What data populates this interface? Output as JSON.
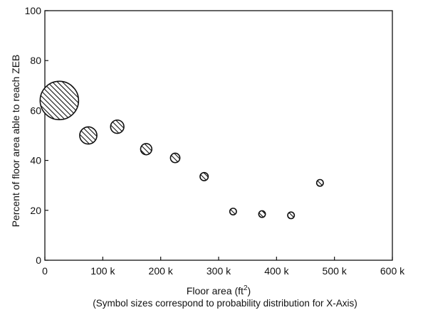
{
  "chart_data": {
    "type": "scatter",
    "xlabel": "Floor area (ft",
    "xlabel_superscript": "2",
    "xlabel_suffix": ")",
    "caption": "(Symbol sizes correspond to probability distribution for X-Axis)",
    "ylabel": "Percent of floor area able to reach ZEB",
    "xlim": [
      0,
      600000
    ],
    "ylim": [
      0,
      100
    ],
    "grid": false,
    "marker_fill": "hatched",
    "x_ticks": [
      {
        "value": 0,
        "label": "0"
      },
      {
        "value": 100000,
        "label": "100 k"
      },
      {
        "value": 200000,
        "label": "200 k"
      },
      {
        "value": 300000,
        "label": "300 k"
      },
      {
        "value": 400000,
        "label": "400 k"
      },
      {
        "value": 500000,
        "label": "500 k"
      },
      {
        "value": 600000,
        "label": "600 k"
      }
    ],
    "y_ticks": [
      {
        "value": 0,
        "label": "0"
      },
      {
        "value": 20,
        "label": "20"
      },
      {
        "value": 40,
        "label": "40"
      },
      {
        "value": 60,
        "label": "60"
      },
      {
        "value": 80,
        "label": "80"
      },
      {
        "value": 100,
        "label": "100"
      }
    ],
    "points": [
      {
        "x": 25000,
        "y": 64,
        "size": 1.0
      },
      {
        "x": 75000,
        "y": 50,
        "size": 0.2
      },
      {
        "x": 125000,
        "y": 53.5,
        "size": 0.12
      },
      {
        "x": 175000,
        "y": 44.5,
        "size": 0.085
      },
      {
        "x": 225000,
        "y": 41,
        "size": 0.06
      },
      {
        "x": 275000,
        "y": 33.5,
        "size": 0.045
      },
      {
        "x": 325000,
        "y": 19.5,
        "size": 0.03
      },
      {
        "x": 375000,
        "y": 18.5,
        "size": 0.03
      },
      {
        "x": 425000,
        "y": 18,
        "size": 0.03
      },
      {
        "x": 475000,
        "y": 31,
        "size": 0.03
      }
    ]
  }
}
